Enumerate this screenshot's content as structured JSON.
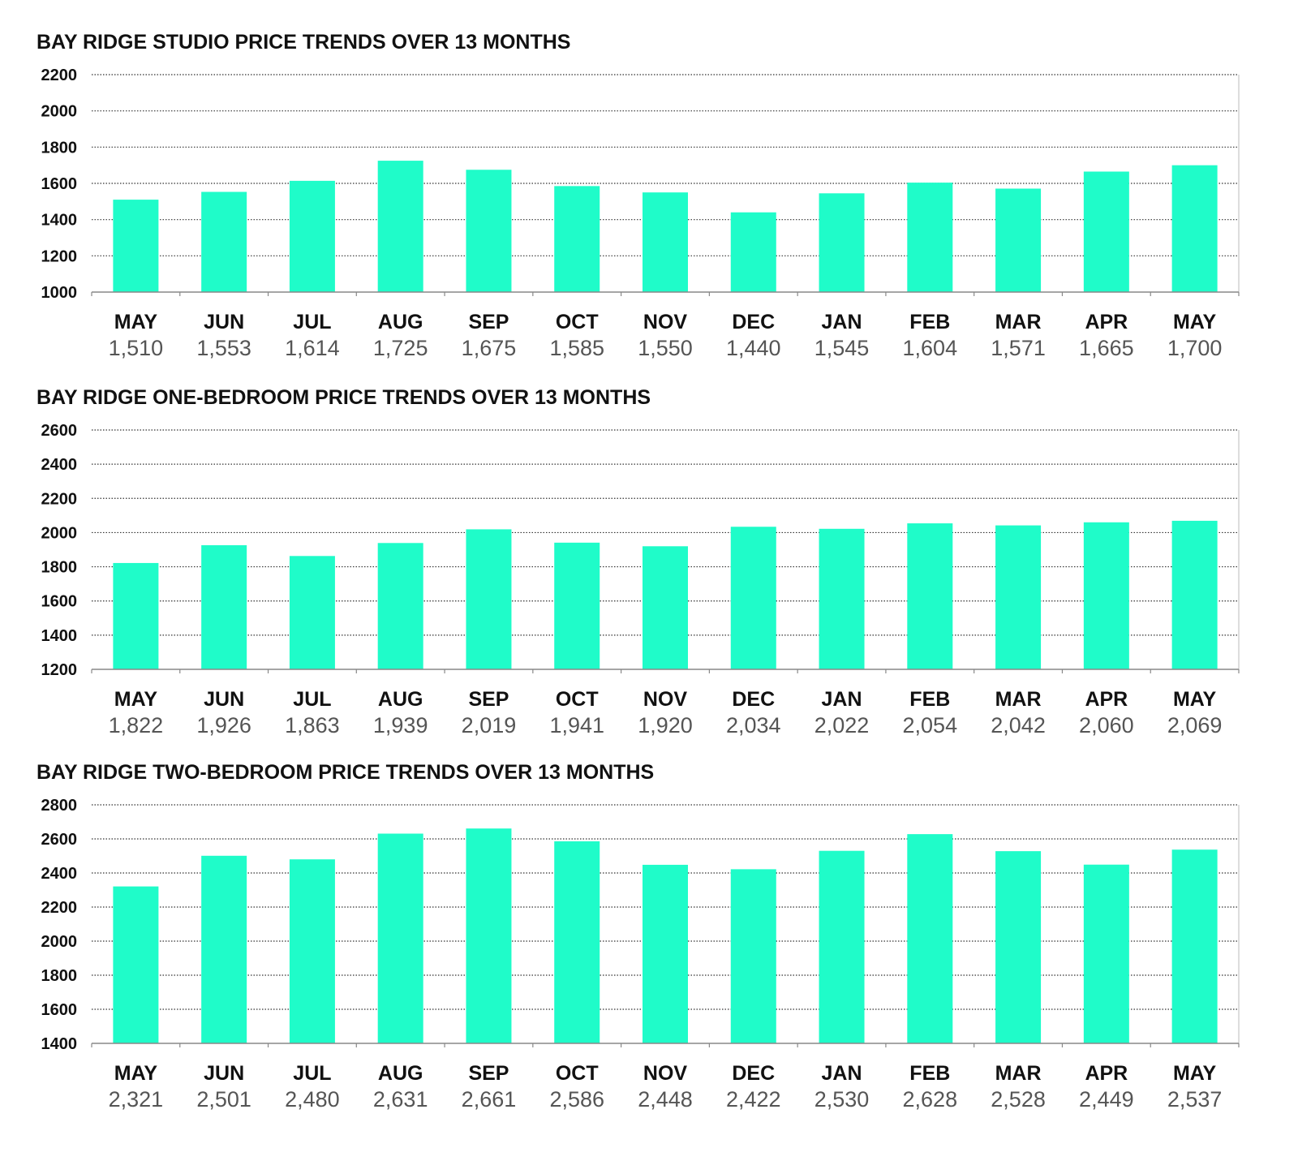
{
  "chart_data": [
    {
      "type": "bar",
      "title": "BAY RIDGE STUDIO PRICE TRENDS OVER 13 MONTHS",
      "xlabel": "",
      "ylabel": "",
      "ylim": [
        1000,
        2200
      ],
      "yticks": [
        1000,
        1200,
        1400,
        1600,
        1800,
        2000,
        2200
      ],
      "grid": true,
      "categories": [
        "MAY",
        "JUN",
        "JUL",
        "AUG",
        "SEP",
        "OCT",
        "NOV",
        "DEC",
        "JAN",
        "FEB",
        "MAR",
        "APR",
        "MAY"
      ],
      "values": [
        1510,
        1553,
        1614,
        1725,
        1675,
        1585,
        1550,
        1440,
        1545,
        1604,
        1571,
        1665,
        1700
      ],
      "value_labels": [
        "1,510",
        "1,553",
        "1,614",
        "1,725",
        "1,675",
        "1,585",
        "1,550",
        "1,440",
        "1,545",
        "1,604",
        "1,571",
        "1,665",
        "1,700"
      ],
      "bar_color": "#1ffcc9"
    },
    {
      "type": "bar",
      "title": "BAY RIDGE ONE-BEDROOM PRICE TRENDS OVER 13 MONTHS",
      "xlabel": "",
      "ylabel": "",
      "ylim": [
        1200,
        2600
      ],
      "yticks": [
        1200,
        1400,
        1600,
        1800,
        2000,
        2200,
        2400,
        2600
      ],
      "grid": true,
      "categories": [
        "MAY",
        "JUN",
        "JUL",
        "AUG",
        "SEP",
        "OCT",
        "NOV",
        "DEC",
        "JAN",
        "FEB",
        "MAR",
        "APR",
        "MAY"
      ],
      "values": [
        1822,
        1926,
        1863,
        1939,
        2019,
        1941,
        1920,
        2034,
        2022,
        2054,
        2042,
        2060,
        2069
      ],
      "value_labels": [
        "1,822",
        "1,926",
        "1,863",
        "1,939",
        "2,019",
        "1,941",
        "1,920",
        "2,034",
        "2,022",
        "2,054",
        "2,042",
        "2,060",
        "2,069"
      ],
      "bar_color": "#1ffcc9"
    },
    {
      "type": "bar",
      "title": "BAY RIDGE TWO-BEDROOM PRICE TRENDS OVER 13 MONTHS",
      "xlabel": "",
      "ylabel": "",
      "ylim": [
        1400,
        2800
      ],
      "yticks": [
        1400,
        1600,
        1800,
        2000,
        2200,
        2400,
        2600,
        2800
      ],
      "grid": true,
      "categories": [
        "MAY",
        "JUN",
        "JUL",
        "AUG",
        "SEP",
        "OCT",
        "NOV",
        "DEC",
        "JAN",
        "FEB",
        "MAR",
        "APR",
        "MAY"
      ],
      "values": [
        2321,
        2501,
        2480,
        2631,
        2661,
        2586,
        2448,
        2422,
        2530,
        2628,
        2528,
        2449,
        2537
      ],
      "value_labels": [
        "2,321",
        "2,501",
        "2,480",
        "2,631",
        "2,661",
        "2,586",
        "2,448",
        "2,422",
        "2,530",
        "2,628",
        "2,528",
        "2,449",
        "2,537"
      ],
      "bar_color": "#1ffcc9"
    }
  ]
}
